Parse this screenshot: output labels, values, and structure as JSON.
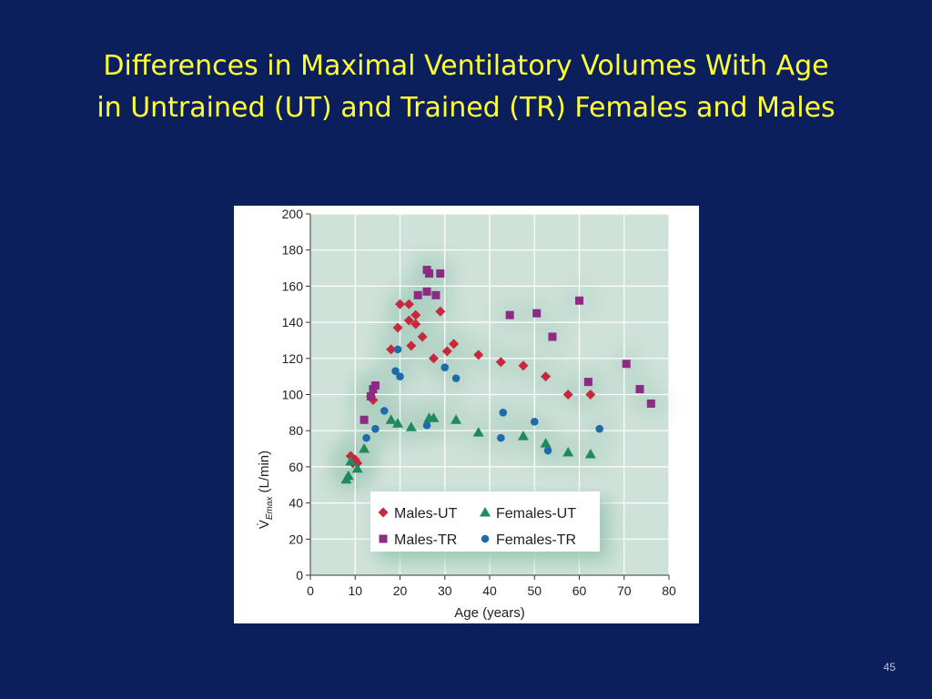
{
  "slide": {
    "title_line1": "Differences in Maximal Ventilatory Volumes With Age",
    "title_line2": "in Untrained (UT) and Trained (TR) Females and Males",
    "slide_number": "45"
  },
  "colors": {
    "background": "#0b1f5c",
    "title": "#ffff33",
    "plot_background": "#cfe2da",
    "males_ut": "#c8283c",
    "females_ut": "#1e8a5e",
    "males_tr": "#8c2a86",
    "females_tr": "#1f6aa8"
  },
  "chart_data": {
    "type": "scatter",
    "xlabel": "Age (years)",
    "ylabel": "V̇Emax (L/min)",
    "ylabel_main": "V̇",
    "ylabel_sub": "Emax",
    "ylabel_unit": "(L/min)",
    "xlim": [
      0,
      80
    ],
    "ylim": [
      0,
      200
    ],
    "x_ticks": [
      0,
      10,
      20,
      30,
      40,
      50,
      60,
      70,
      80
    ],
    "y_ticks": [
      0,
      20,
      40,
      60,
      80,
      100,
      120,
      140,
      160,
      180,
      200
    ],
    "grid": true,
    "legend_position": "bottom-center",
    "series": [
      {
        "name": "Males-UT",
        "marker": "diamond",
        "color": "#c8283c",
        "points": [
          [
            9,
            66
          ],
          [
            9.5,
            62
          ],
          [
            10,
            64
          ],
          [
            10.5,
            62
          ],
          [
            13.5,
            99
          ],
          [
            14,
            97
          ],
          [
            18,
            125
          ],
          [
            19.5,
            137
          ],
          [
            20,
            150
          ],
          [
            22,
            150
          ],
          [
            22,
            141
          ],
          [
            22.5,
            127
          ],
          [
            23.5,
            144
          ],
          [
            23.5,
            139
          ],
          [
            25,
            132
          ],
          [
            27.5,
            120
          ],
          [
            29,
            146
          ],
          [
            30.5,
            124
          ],
          [
            32,
            128
          ],
          [
            37.5,
            122
          ],
          [
            42.5,
            118
          ],
          [
            47.5,
            116
          ],
          [
            52.5,
            110
          ],
          [
            57.5,
            100
          ],
          [
            62.5,
            100
          ]
        ]
      },
      {
        "name": "Females-UT",
        "marker": "triangle",
        "color": "#1e8a5e",
        "points": [
          [
            8,
            53
          ],
          [
            8.5,
            55
          ],
          [
            9,
            63
          ],
          [
            10.5,
            59
          ],
          [
            12,
            70
          ],
          [
            18,
            86
          ],
          [
            19.5,
            84
          ],
          [
            22.5,
            82
          ],
          [
            26.5,
            87
          ],
          [
            27.5,
            87
          ],
          [
            32.5,
            86
          ],
          [
            37.5,
            79
          ],
          [
            47.5,
            77
          ],
          [
            52.5,
            73
          ],
          [
            57.5,
            68
          ],
          [
            62.5,
            67
          ]
        ]
      },
      {
        "name": "Males-TR",
        "marker": "square",
        "color": "#8c2a86",
        "points": [
          [
            12,
            86
          ],
          [
            13.5,
            99
          ],
          [
            14,
            103
          ],
          [
            14.5,
            105
          ],
          [
            24,
            155
          ],
          [
            26,
            169
          ],
          [
            26,
            157
          ],
          [
            26.5,
            167
          ],
          [
            28,
            155
          ],
          [
            29,
            167
          ],
          [
            44.5,
            144
          ],
          [
            50.5,
            145
          ],
          [
            54,
            132
          ],
          [
            60,
            152
          ],
          [
            62,
            107
          ],
          [
            70.5,
            117
          ],
          [
            73.5,
            103
          ],
          [
            76,
            95
          ]
        ]
      },
      {
        "name": "Females-TR",
        "marker": "circle",
        "color": "#1f6aa8",
        "points": [
          [
            12.5,
            76
          ],
          [
            14.5,
            81
          ],
          [
            16.5,
            91
          ],
          [
            19,
            113
          ],
          [
            19.5,
            125
          ],
          [
            20,
            110
          ],
          [
            26,
            83
          ],
          [
            30,
            115
          ],
          [
            32.5,
            109
          ],
          [
            42.5,
            76
          ],
          [
            43,
            90
          ],
          [
            50,
            85
          ],
          [
            53,
            69
          ],
          [
            64.5,
            81
          ]
        ]
      }
    ]
  }
}
